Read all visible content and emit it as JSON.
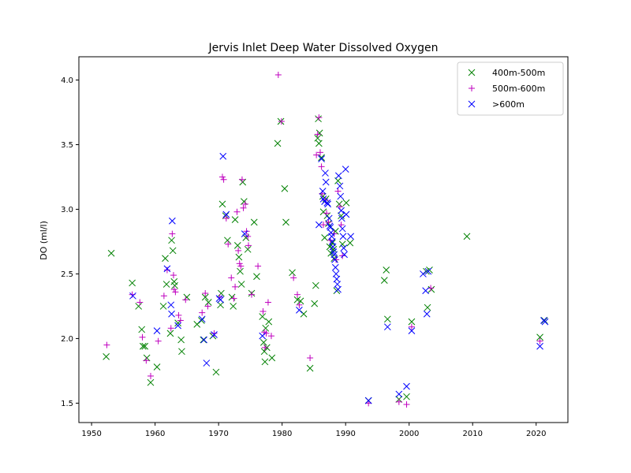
{
  "chart_data": {
    "type": "scatter",
    "title": "Jervis Inlet Deep Water Dissolved Oxygen",
    "xlabel": "",
    "ylabel": "DO (ml/l)",
    "xlim": [
      1948,
      2025
    ],
    "ylim": [
      1.35,
      4.18
    ],
    "xticks": [
      1950,
      1960,
      1970,
      1980,
      1990,
      2000,
      2010,
      2020
    ],
    "yticks": [
      1.5,
      2.0,
      2.5,
      3.0,
      3.5,
      4.0
    ],
    "xtick_labels": [
      "1950",
      "1960",
      "1970",
      "1980",
      "1990",
      "2000",
      "2010",
      "2020"
    ],
    "ytick_labels": [
      "1.5",
      "2.0",
      "2.5",
      "3.0",
      "3.5",
      "4.0"
    ],
    "grid": false,
    "legend_position": "top-right",
    "series": [
      {
        "name": "400m-500m",
        "color": "#008000",
        "marker": "x",
        "points": [
          [
            1952.3,
            1.86
          ],
          [
            1953.1,
            2.66
          ],
          [
            1956.4,
            2.43
          ],
          [
            1957.4,
            2.25
          ],
          [
            1957.9,
            2.07
          ],
          [
            1958.1,
            1.94
          ],
          [
            1958.4,
            1.94
          ],
          [
            1958.7,
            1.85
          ],
          [
            1959.3,
            1.66
          ],
          [
            1960.3,
            1.78
          ],
          [
            1961.3,
            2.25
          ],
          [
            1961.6,
            2.62
          ],
          [
            1961.8,
            2.42
          ],
          [
            1962.4,
            2.04
          ],
          [
            1962.6,
            2.76
          ],
          [
            1962.8,
            2.68
          ],
          [
            1963.0,
            2.44
          ],
          [
            1963.1,
            2.41
          ],
          [
            1963.6,
            2.12
          ],
          [
            1964.1,
            1.99
          ],
          [
            1964.2,
            1.9
          ],
          [
            1965.0,
            2.32
          ],
          [
            1966.6,
            2.11
          ],
          [
            1967.3,
            2.14
          ],
          [
            1967.6,
            1.99
          ],
          [
            1967.9,
            2.32
          ],
          [
            1968.4,
            2.28
          ],
          [
            1969.1,
            2.02
          ],
          [
            1969.6,
            1.74
          ],
          [
            1970.3,
            2.26
          ],
          [
            1970.4,
            2.35
          ],
          [
            1970.6,
            3.04
          ],
          [
            1971.1,
            2.95
          ],
          [
            1971.4,
            2.76
          ],
          [
            1972.1,
            2.32
          ],
          [
            1972.3,
            2.25
          ],
          [
            1972.6,
            2.92
          ],
          [
            1973.0,
            2.72
          ],
          [
            1973.2,
            2.63
          ],
          [
            1973.4,
            2.52
          ],
          [
            1973.6,
            2.42
          ],
          [
            1973.8,
            3.21
          ],
          [
            1974.0,
            3.06
          ],
          [
            1974.3,
            2.78
          ],
          [
            1974.6,
            2.69
          ],
          [
            1975.2,
            2.35
          ],
          [
            1975.6,
            2.9
          ],
          [
            1976.0,
            2.48
          ],
          [
            1976.9,
            2.17
          ],
          [
            1977.1,
            1.97
          ],
          [
            1977.2,
            1.9
          ],
          [
            1977.3,
            1.82
          ],
          [
            1977.4,
            2.08
          ],
          [
            1977.6,
            1.93
          ],
          [
            1977.9,
            2.13
          ],
          [
            1978.4,
            1.85
          ],
          [
            1979.3,
            3.51
          ],
          [
            1979.8,
            3.68
          ],
          [
            1980.4,
            3.16
          ],
          [
            1980.6,
            2.9
          ],
          [
            1981.6,
            2.51
          ],
          [
            1982.4,
            2.3
          ],
          [
            1982.9,
            2.29
          ],
          [
            1983.4,
            2.19
          ],
          [
            1984.4,
            1.77
          ],
          [
            1985.1,
            2.27
          ],
          [
            1985.3,
            2.41
          ],
          [
            1985.6,
            3.55
          ],
          [
            1985.7,
            3.7
          ],
          [
            1985.8,
            3.51
          ],
          [
            1985.9,
            3.59
          ],
          [
            1986.2,
            3.4
          ],
          [
            1986.4,
            3.1
          ],
          [
            1986.5,
            2.98
          ],
          [
            1986.7,
            2.78
          ],
          [
            1986.9,
            3.08
          ],
          [
            1987.1,
            2.95
          ],
          [
            1987.3,
            2.89
          ],
          [
            1987.5,
            2.71
          ],
          [
            1987.7,
            2.66
          ],
          [
            1987.9,
            2.74
          ],
          [
            1988.1,
            2.69
          ],
          [
            1988.2,
            2.62
          ],
          [
            1988.4,
            2.83
          ],
          [
            1988.6,
            2.37
          ],
          [
            1988.8,
            3.22
          ],
          [
            1989.0,
            3.04
          ],
          [
            1989.3,
            2.95
          ],
          [
            1989.5,
            2.73
          ],
          [
            1990.1,
            3.05
          ],
          [
            1990.7,
            2.74
          ],
          [
            1993.6,
            1.52
          ],
          [
            1996.1,
            2.45
          ],
          [
            1996.4,
            2.53
          ],
          [
            1996.6,
            2.15
          ],
          [
            1998.4,
            1.53
          ],
          [
            1999.6,
            1.55
          ],
          [
            2000.4,
            2.13
          ],
          [
            2002.7,
            2.52
          ],
          [
            2002.9,
            2.24
          ],
          [
            2003.2,
            2.53
          ],
          [
            2003.5,
            2.38
          ],
          [
            2009.1,
            2.79
          ],
          [
            2020.6,
            2.01
          ],
          [
            2021.3,
            2.14
          ]
        ]
      },
      {
        "name": "500m-600m",
        "color": "#bf00bf",
        "marker": "+",
        "points": [
          [
            1952.4,
            1.95
          ],
          [
            1956.4,
            2.34
          ],
          [
            1957.6,
            2.28
          ],
          [
            1958.0,
            2.01
          ],
          [
            1958.6,
            1.83
          ],
          [
            1959.3,
            1.71
          ],
          [
            1960.5,
            1.98
          ],
          [
            1961.4,
            2.33
          ],
          [
            1961.9,
            2.53
          ],
          [
            1962.5,
            2.08
          ],
          [
            1962.7,
            2.81
          ],
          [
            1962.9,
            2.49
          ],
          [
            1963.0,
            2.38
          ],
          [
            1963.2,
            2.36
          ],
          [
            1963.7,
            2.18
          ],
          [
            1964.0,
            2.14
          ],
          [
            1964.8,
            2.3
          ],
          [
            1967.4,
            2.2
          ],
          [
            1967.9,
            2.35
          ],
          [
            1968.3,
            2.25
          ],
          [
            1969.3,
            2.04
          ],
          [
            1970.2,
            2.32
          ],
          [
            1970.6,
            3.25
          ],
          [
            1970.8,
            3.23
          ],
          [
            1971.2,
            2.93
          ],
          [
            1971.5,
            2.73
          ],
          [
            1972.0,
            2.47
          ],
          [
            1972.4,
            2.31
          ],
          [
            1972.6,
            2.4
          ],
          [
            1972.9,
            2.98
          ],
          [
            1973.1,
            2.68
          ],
          [
            1973.3,
            2.58
          ],
          [
            1973.5,
            2.56
          ],
          [
            1973.7,
            3.23
          ],
          [
            1973.9,
            3.01
          ],
          [
            1974.2,
            3.04
          ],
          [
            1974.4,
            2.83
          ],
          [
            1974.6,
            2.79
          ],
          [
            1974.7,
            2.72
          ],
          [
            1975.2,
            2.34
          ],
          [
            1976.2,
            2.56
          ],
          [
            1977.0,
            2.21
          ],
          [
            1977.2,
            2.05
          ],
          [
            1977.3,
            1.93
          ],
          [
            1977.5,
            2.04
          ],
          [
            1977.8,
            2.28
          ],
          [
            1978.3,
            2.02
          ],
          [
            1979.4,
            4.04
          ],
          [
            1979.9,
            3.68
          ],
          [
            1981.8,
            2.47
          ],
          [
            1982.4,
            2.34
          ],
          [
            1982.7,
            2.26
          ],
          [
            1984.4,
            1.85
          ],
          [
            1985.4,
            3.42
          ],
          [
            1985.6,
            3.58
          ],
          [
            1985.8,
            3.71
          ],
          [
            1986.0,
            3.44
          ],
          [
            1986.2,
            3.33
          ],
          [
            1986.3,
            3.12
          ],
          [
            1986.5,
            2.88
          ],
          [
            1986.8,
            3.07
          ],
          [
            1987.0,
            2.97
          ],
          [
            1987.3,
            2.9
          ],
          [
            1987.6,
            2.76
          ],
          [
            1988.2,
            2.81
          ],
          [
            1988.5,
            2.61
          ],
          [
            1988.8,
            3.14
          ],
          [
            1989.1,
            3.02
          ],
          [
            1989.3,
            2.88
          ],
          [
            1989.5,
            2.64
          ],
          [
            1993.6,
            1.5
          ],
          [
            1998.4,
            1.51
          ],
          [
            1999.6,
            1.49
          ],
          [
            2000.4,
            2.09
          ],
          [
            2003.4,
            2.39
          ],
          [
            2020.6,
            1.98
          ]
        ]
      },
      {
        "name": ">600m",
        "color": "#0000ff",
        "marker": "x",
        "points": [
          [
            1956.5,
            2.33
          ],
          [
            1960.3,
            2.06
          ],
          [
            1961.9,
            2.54
          ],
          [
            1962.5,
            2.26
          ],
          [
            1962.6,
            2.19
          ],
          [
            1962.7,
            2.91
          ],
          [
            1963.6,
            2.1
          ],
          [
            1967.4,
            2.15
          ],
          [
            1967.7,
            1.99
          ],
          [
            1968.1,
            1.81
          ],
          [
            1969.3,
            2.03
          ],
          [
            1970.1,
            2.31
          ],
          [
            1970.3,
            2.3
          ],
          [
            1970.7,
            3.41
          ],
          [
            1971.2,
            2.96
          ],
          [
            1974.1,
            2.81
          ],
          [
            1976.9,
            2.02
          ],
          [
            1982.7,
            2.22
          ],
          [
            1985.8,
            2.88
          ],
          [
            1986.2,
            3.39
          ],
          [
            1986.4,
            3.14
          ],
          [
            1986.5,
            3.08
          ],
          [
            1986.7,
            3.06
          ],
          [
            1986.8,
            3.28
          ],
          [
            1986.9,
            3.21
          ],
          [
            1987.1,
            3.05
          ],
          [
            1987.2,
            3.04
          ],
          [
            1987.4,
            2.93
          ],
          [
            1987.5,
            2.87
          ],
          [
            1987.6,
            2.86
          ],
          [
            1987.7,
            2.82
          ],
          [
            1987.8,
            2.79
          ],
          [
            1987.9,
            2.75
          ],
          [
            1988.0,
            2.71
          ],
          [
            1988.1,
            2.67
          ],
          [
            1988.2,
            2.65
          ],
          [
            1988.3,
            2.61
          ],
          [
            1988.4,
            2.55
          ],
          [
            1988.5,
            2.5
          ],
          [
            1988.6,
            2.46
          ],
          [
            1988.7,
            2.42
          ],
          [
            1988.8,
            2.38
          ],
          [
            1988.9,
            3.26
          ],
          [
            1989.1,
            3.18
          ],
          [
            1989.2,
            3.1
          ],
          [
            1989.3,
            2.99
          ],
          [
            1989.4,
            2.93
          ],
          [
            1989.5,
            2.85
          ],
          [
            1989.6,
            2.79
          ],
          [
            1989.7,
            2.7
          ],
          [
            1989.8,
            2.65
          ],
          [
            1990.0,
            3.31
          ],
          [
            1990.1,
            2.96
          ],
          [
            1990.8,
            2.79
          ],
          [
            1993.6,
            1.52
          ],
          [
            1996.6,
            2.09
          ],
          [
            1998.4,
            1.57
          ],
          [
            1999.6,
            1.63
          ],
          [
            2000.4,
            2.06
          ],
          [
            2002.2,
            2.5
          ],
          [
            2002.6,
            2.37
          ],
          [
            2002.8,
            2.19
          ],
          [
            2003.0,
            2.52
          ],
          [
            2020.6,
            1.94
          ],
          [
            2021.2,
            2.14
          ],
          [
            2021.4,
            2.13
          ]
        ]
      }
    ]
  }
}
